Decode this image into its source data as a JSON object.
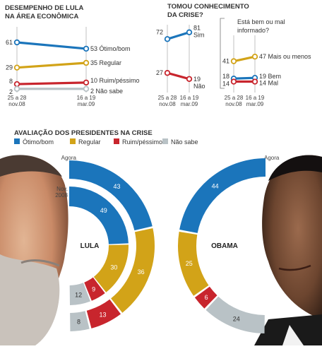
{
  "colors": {
    "otimo": "#1b75bb",
    "regular": "#d2a318",
    "ruim": "#c8252d",
    "nao": "#b9c2c6",
    "axis": "#888888"
  },
  "chart_data": [
    {
      "type": "line",
      "title": "DESEMPENHO DE LULA NA ÁREA ECONÔMICA",
      "x": [
        "25 a 28 nov.08",
        "16 a 19 mar.09"
      ],
      "xlabels": [
        [
          "25 a 28",
          "nov.08"
        ],
        [
          "16 a 19",
          "mar.09"
        ]
      ],
      "series": [
        {
          "name": "Ótimo/bom",
          "values": [
            61,
            53
          ],
          "color": "#1b75bb"
        },
        {
          "name": "Regular",
          "values": [
            29,
            35
          ],
          "color": "#d2a318"
        },
        {
          "name": "Ruim/péssimo",
          "values": [
            8,
            10
          ],
          "color": "#c8252d"
        },
        {
          "name": "Não sabe",
          "values": [
            2,
            2
          ],
          "color": "#b9c2c6"
        }
      ]
    },
    {
      "type": "line",
      "title": "TOMOU CONHECIMENTO DA CRISE?",
      "x": [
        "25 a 28 nov.08",
        "16 a 19 mar.09"
      ],
      "xlabels": [
        [
          "25 a 28",
          "nov.08"
        ],
        [
          "16 a 19",
          "mar.09"
        ]
      ],
      "series": [
        {
          "name": "Sim",
          "values": [
            72,
            81
          ],
          "color": "#1b75bb"
        },
        {
          "name": "Não",
          "values": [
            27,
            19
          ],
          "color": "#c8252d"
        }
      ]
    },
    {
      "type": "line",
      "title": "Está bem ou mal informado?",
      "x": [
        "25 a 28 nov.08",
        "16 a 19 mar.09"
      ],
      "xlabels": [
        [
          "25 a 28",
          "nov.08"
        ],
        [
          "16 a 19",
          "mar.09"
        ]
      ],
      "series": [
        {
          "name": "Mais ou menos",
          "values": [
            41,
            47
          ],
          "color": "#d2a318"
        },
        {
          "name": "Bem",
          "values": [
            18,
            19
          ],
          "color": "#1b75bb"
        },
        {
          "name": "Mal",
          "values": [
            14,
            14
          ],
          "color": "#c8252d"
        }
      ]
    },
    {
      "type": "pie",
      "title": "AVALIAÇÃO DOS PRESIDENTES NA CRISE",
      "legend": [
        {
          "label": "Ótimo/bom",
          "color": "#1b75bb"
        },
        {
          "label": "Regular",
          "color": "#d2a318"
        },
        {
          "label": "Ruim/péssimo",
          "color": "#c8252d"
        },
        {
          "label": "Não sabe",
          "color": "#b9c2c6"
        }
      ],
      "presidents": [
        {
          "name": "LULA",
          "rings": [
            {
              "label": "Agora",
              "values": [
                43,
                36,
                13,
                8
              ]
            },
            {
              "label": "Nov. 2008",
              "values": [
                49,
                30,
                9,
                12
              ]
            }
          ]
        },
        {
          "name": "OBAMA",
          "rings": [
            {
              "label": "Agora",
              "values": [
                44,
                25,
                6,
                24
              ]
            }
          ]
        }
      ]
    }
  ]
}
